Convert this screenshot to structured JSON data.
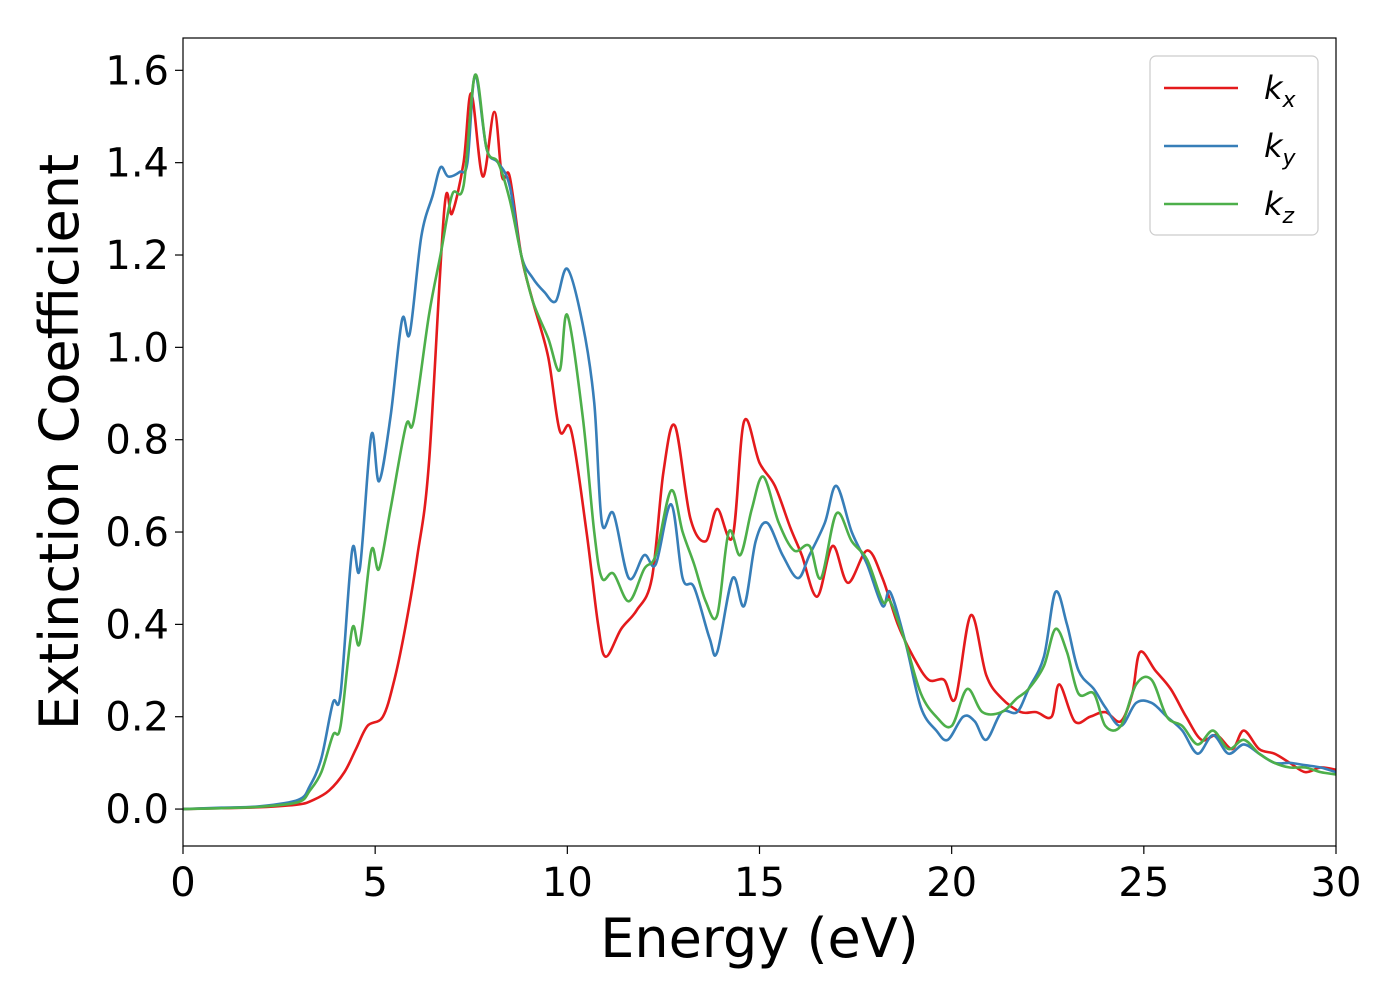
{
  "chart_data": {
    "type": "line",
    "xlabel": "Energy (eV)",
    "ylabel": "Extinction Coefficient",
    "xlim": [
      0,
      30
    ],
    "ylim": [
      -0.08,
      1.67
    ],
    "x_ticks": [
      0,
      5,
      10,
      15,
      20,
      25,
      30
    ],
    "x_tick_labels": [
      "0",
      "5",
      "10",
      "15",
      "20",
      "25",
      "30"
    ],
    "y_ticks": [
      0.0,
      0.2,
      0.4,
      0.6,
      0.8,
      1.0,
      1.2,
      1.4,
      1.6
    ],
    "y_tick_labels": [
      "0.0",
      "0.2",
      "0.4",
      "0.6",
      "0.8",
      "1.0",
      "1.2",
      "1.4",
      "1.6"
    ],
    "grid": false,
    "legend_position": "top-right",
    "series": [
      {
        "name": "k",
        "subscript": "x",
        "color": "#e41a1c",
        "points": [
          [
            0,
            0
          ],
          [
            1,
            0.002
          ],
          [
            2,
            0.004
          ],
          [
            3,
            0.01
          ],
          [
            3.4,
            0.02
          ],
          [
            3.8,
            0.04
          ],
          [
            4.2,
            0.08
          ],
          [
            4.5,
            0.13
          ],
          [
            4.8,
            0.18
          ],
          [
            5.2,
            0.2
          ],
          [
            5.5,
            0.28
          ],
          [
            5.8,
            0.4
          ],
          [
            6.1,
            0.55
          ],
          [
            6.4,
            0.75
          ],
          [
            6.8,
            1.3
          ],
          [
            7.0,
            1.29
          ],
          [
            7.3,
            1.4
          ],
          [
            7.5,
            1.55
          ],
          [
            7.8,
            1.37
          ],
          [
            8.1,
            1.51
          ],
          [
            8.3,
            1.37
          ],
          [
            8.5,
            1.37
          ],
          [
            8.8,
            1.2
          ],
          [
            9.1,
            1.1
          ],
          [
            9.5,
            0.98
          ],
          [
            9.8,
            0.82
          ],
          [
            10.1,
            0.82
          ],
          [
            10.5,
            0.6
          ],
          [
            10.8,
            0.4
          ],
          [
            11.0,
            0.33
          ],
          [
            11.4,
            0.39
          ],
          [
            11.8,
            0.43
          ],
          [
            12.2,
            0.5
          ],
          [
            12.5,
            0.73
          ],
          [
            12.8,
            0.83
          ],
          [
            13.2,
            0.63
          ],
          [
            13.6,
            0.58
          ],
          [
            13.9,
            0.65
          ],
          [
            14.3,
            0.59
          ],
          [
            14.6,
            0.84
          ],
          [
            15.0,
            0.75
          ],
          [
            15.4,
            0.7
          ],
          [
            15.8,
            0.61
          ],
          [
            16.1,
            0.55
          ],
          [
            16.5,
            0.46
          ],
          [
            16.9,
            0.57
          ],
          [
            17.3,
            0.49
          ],
          [
            17.8,
            0.56
          ],
          [
            18.2,
            0.5
          ],
          [
            18.6,
            0.4
          ],
          [
            19.0,
            0.33
          ],
          [
            19.4,
            0.28
          ],
          [
            19.8,
            0.28
          ],
          [
            20.1,
            0.24
          ],
          [
            20.5,
            0.42
          ],
          [
            20.9,
            0.29
          ],
          [
            21.3,
            0.24
          ],
          [
            21.8,
            0.21
          ],
          [
            22.2,
            0.21
          ],
          [
            22.6,
            0.2
          ],
          [
            22.8,
            0.27
          ],
          [
            23.2,
            0.19
          ],
          [
            23.6,
            0.2
          ],
          [
            24.0,
            0.21
          ],
          [
            24.4,
            0.19
          ],
          [
            24.7,
            0.25
          ],
          [
            24.9,
            0.34
          ],
          [
            25.3,
            0.3
          ],
          [
            25.7,
            0.26
          ],
          [
            26.1,
            0.2
          ],
          [
            26.5,
            0.15
          ],
          [
            26.9,
            0.16
          ],
          [
            27.3,
            0.13
          ],
          [
            27.6,
            0.17
          ],
          [
            28.0,
            0.13
          ],
          [
            28.4,
            0.12
          ],
          [
            28.8,
            0.1
          ],
          [
            29.2,
            0.08
          ],
          [
            29.6,
            0.09
          ],
          [
            30,
            0.085
          ]
        ]
      },
      {
        "name": "k",
        "subscript": "y",
        "color": "#377eb8",
        "points": [
          [
            0,
            0
          ],
          [
            1,
            0.003
          ],
          [
            2,
            0.006
          ],
          [
            3,
            0.02
          ],
          [
            3.3,
            0.05
          ],
          [
            3.6,
            0.11
          ],
          [
            3.9,
            0.23
          ],
          [
            4.1,
            0.25
          ],
          [
            4.4,
            0.56
          ],
          [
            4.6,
            0.52
          ],
          [
            4.9,
            0.81
          ],
          [
            5.1,
            0.71
          ],
          [
            5.4,
            0.85
          ],
          [
            5.7,
            1.06
          ],
          [
            5.9,
            1.03
          ],
          [
            6.2,
            1.24
          ],
          [
            6.5,
            1.33
          ],
          [
            6.7,
            1.39
          ],
          [
            6.9,
            1.37
          ],
          [
            7.2,
            1.38
          ],
          [
            7.4,
            1.4
          ],
          [
            7.6,
            1.59
          ],
          [
            7.9,
            1.43
          ],
          [
            8.2,
            1.4
          ],
          [
            8.5,
            1.35
          ],
          [
            8.8,
            1.2
          ],
          [
            9.1,
            1.15
          ],
          [
            9.4,
            1.12
          ],
          [
            9.7,
            1.1
          ],
          [
            10.0,
            1.17
          ],
          [
            10.4,
            1.05
          ],
          [
            10.7,
            0.88
          ],
          [
            10.9,
            0.62
          ],
          [
            11.2,
            0.64
          ],
          [
            11.6,
            0.5
          ],
          [
            12.0,
            0.55
          ],
          [
            12.3,
            0.53
          ],
          [
            12.7,
            0.66
          ],
          [
            13.0,
            0.5
          ],
          [
            13.3,
            0.48
          ],
          [
            13.7,
            0.37
          ],
          [
            13.9,
            0.34
          ],
          [
            14.3,
            0.5
          ],
          [
            14.6,
            0.44
          ],
          [
            14.9,
            0.58
          ],
          [
            15.2,
            0.62
          ],
          [
            15.6,
            0.55
          ],
          [
            16.0,
            0.5
          ],
          [
            16.3,
            0.55
          ],
          [
            16.7,
            0.62
          ],
          [
            17.0,
            0.7
          ],
          [
            17.4,
            0.6
          ],
          [
            17.8,
            0.53
          ],
          [
            18.2,
            0.44
          ],
          [
            18.4,
            0.47
          ],
          [
            18.8,
            0.36
          ],
          [
            19.2,
            0.22
          ],
          [
            19.6,
            0.17
          ],
          [
            19.9,
            0.15
          ],
          [
            20.3,
            0.2
          ],
          [
            20.6,
            0.19
          ],
          [
            20.9,
            0.15
          ],
          [
            21.3,
            0.21
          ],
          [
            21.7,
            0.21
          ],
          [
            22.0,
            0.26
          ],
          [
            22.4,
            0.33
          ],
          [
            22.7,
            0.47
          ],
          [
            23.0,
            0.4
          ],
          [
            23.3,
            0.3
          ],
          [
            23.7,
            0.26
          ],
          [
            24.0,
            0.22
          ],
          [
            24.4,
            0.18
          ],
          [
            24.8,
            0.23
          ],
          [
            25.2,
            0.23
          ],
          [
            25.6,
            0.2
          ],
          [
            26.0,
            0.17
          ],
          [
            26.4,
            0.12
          ],
          [
            26.8,
            0.16
          ],
          [
            27.2,
            0.12
          ],
          [
            27.6,
            0.14
          ],
          [
            28.0,
            0.12
          ],
          [
            28.4,
            0.1
          ],
          [
            28.8,
            0.1
          ],
          [
            29.2,
            0.095
          ],
          [
            29.6,
            0.09
          ],
          [
            30,
            0.08
          ]
        ]
      },
      {
        "name": "k",
        "subscript": "z",
        "color": "#4daf4a",
        "points": [
          [
            0,
            0
          ],
          [
            1,
            0.002
          ],
          [
            2,
            0.005
          ],
          [
            3,
            0.015
          ],
          [
            3.3,
            0.04
          ],
          [
            3.6,
            0.08
          ],
          [
            3.9,
            0.16
          ],
          [
            4.1,
            0.18
          ],
          [
            4.4,
            0.39
          ],
          [
            4.6,
            0.36
          ],
          [
            4.9,
            0.56
          ],
          [
            5.1,
            0.52
          ],
          [
            5.4,
            0.65
          ],
          [
            5.8,
            0.83
          ],
          [
            6.0,
            0.84
          ],
          [
            6.4,
            1.07
          ],
          [
            6.7,
            1.2
          ],
          [
            7.0,
            1.33
          ],
          [
            7.3,
            1.35
          ],
          [
            7.6,
            1.59
          ],
          [
            7.9,
            1.43
          ],
          [
            8.2,
            1.4
          ],
          [
            8.5,
            1.32
          ],
          [
            8.8,
            1.2
          ],
          [
            9.1,
            1.1
          ],
          [
            9.5,
            1.02
          ],
          [
            9.8,
            0.95
          ],
          [
            10.0,
            1.07
          ],
          [
            10.4,
            0.85
          ],
          [
            10.7,
            0.6
          ],
          [
            10.9,
            0.5
          ],
          [
            11.2,
            0.51
          ],
          [
            11.6,
            0.45
          ],
          [
            12.0,
            0.52
          ],
          [
            12.3,
            0.55
          ],
          [
            12.7,
            0.69
          ],
          [
            13.0,
            0.6
          ],
          [
            13.3,
            0.53
          ],
          [
            13.6,
            0.45
          ],
          [
            13.9,
            0.42
          ],
          [
            14.2,
            0.6
          ],
          [
            14.5,
            0.55
          ],
          [
            14.8,
            0.65
          ],
          [
            15.1,
            0.72
          ],
          [
            15.5,
            0.62
          ],
          [
            15.9,
            0.56
          ],
          [
            16.3,
            0.57
          ],
          [
            16.6,
            0.5
          ],
          [
            17.0,
            0.64
          ],
          [
            17.4,
            0.58
          ],
          [
            17.8,
            0.54
          ],
          [
            18.2,
            0.45
          ],
          [
            18.4,
            0.45
          ],
          [
            18.8,
            0.36
          ],
          [
            19.2,
            0.25
          ],
          [
            19.6,
            0.2
          ],
          [
            20.0,
            0.18
          ],
          [
            20.4,
            0.26
          ],
          [
            20.8,
            0.21
          ],
          [
            21.3,
            0.21
          ],
          [
            21.7,
            0.24
          ],
          [
            22.0,
            0.26
          ],
          [
            22.4,
            0.31
          ],
          [
            22.7,
            0.39
          ],
          [
            23.0,
            0.34
          ],
          [
            23.3,
            0.25
          ],
          [
            23.7,
            0.25
          ],
          [
            24.0,
            0.18
          ],
          [
            24.4,
            0.18
          ],
          [
            24.8,
            0.27
          ],
          [
            25.2,
            0.28
          ],
          [
            25.6,
            0.2
          ],
          [
            26.0,
            0.18
          ],
          [
            26.4,
            0.14
          ],
          [
            26.8,
            0.17
          ],
          [
            27.2,
            0.13
          ],
          [
            27.6,
            0.15
          ],
          [
            28.0,
            0.12
          ],
          [
            28.4,
            0.1
          ],
          [
            28.8,
            0.09
          ],
          [
            29.2,
            0.09
          ],
          [
            29.6,
            0.08
          ],
          [
            30,
            0.075
          ]
        ]
      }
    ]
  }
}
